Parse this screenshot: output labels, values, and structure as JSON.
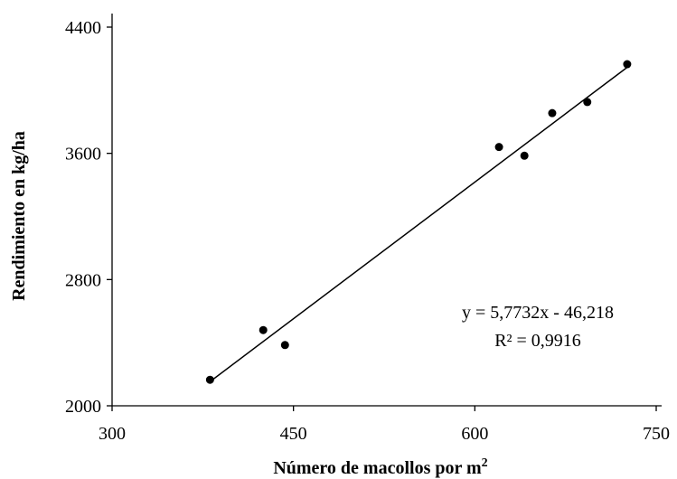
{
  "chart_data": {
    "type": "scatter",
    "title": "",
    "xlabel": "Número de macollos por m",
    "xlabel_superscript": "2",
    "ylabel": "Rendimiento en kg/ha",
    "xlim": [
      300,
      750
    ],
    "ylim": [
      2000,
      4400
    ],
    "xticks": [
      300,
      450,
      600,
      750
    ],
    "yticks": [
      2000,
      2800,
      3600,
      4400
    ],
    "x_tick_labels": [
      "300",
      "450",
      "600",
      "750"
    ],
    "y_tick_labels": [
      "2000",
      "2800",
      "3600",
      "4400"
    ],
    "grid": false,
    "legend": "none",
    "point_color": "#000000",
    "line_color": "#000000",
    "points": [
      {
        "x": 381,
        "y": 2165
      },
      {
        "x": 425,
        "y": 2480
      },
      {
        "x": 443,
        "y": 2385
      },
      {
        "x": 620,
        "y": 3640
      },
      {
        "x": 641,
        "y": 3585
      },
      {
        "x": 664,
        "y": 3855
      },
      {
        "x": 693,
        "y": 3925
      },
      {
        "x": 726,
        "y": 4165
      }
    ],
    "trendline": {
      "slope": 5.7732,
      "intercept": -46.218,
      "x_start": 381,
      "x_end": 726
    },
    "annotations": [
      "y = 5,7732x - 46,218",
      "R² = 0,9916"
    ]
  }
}
